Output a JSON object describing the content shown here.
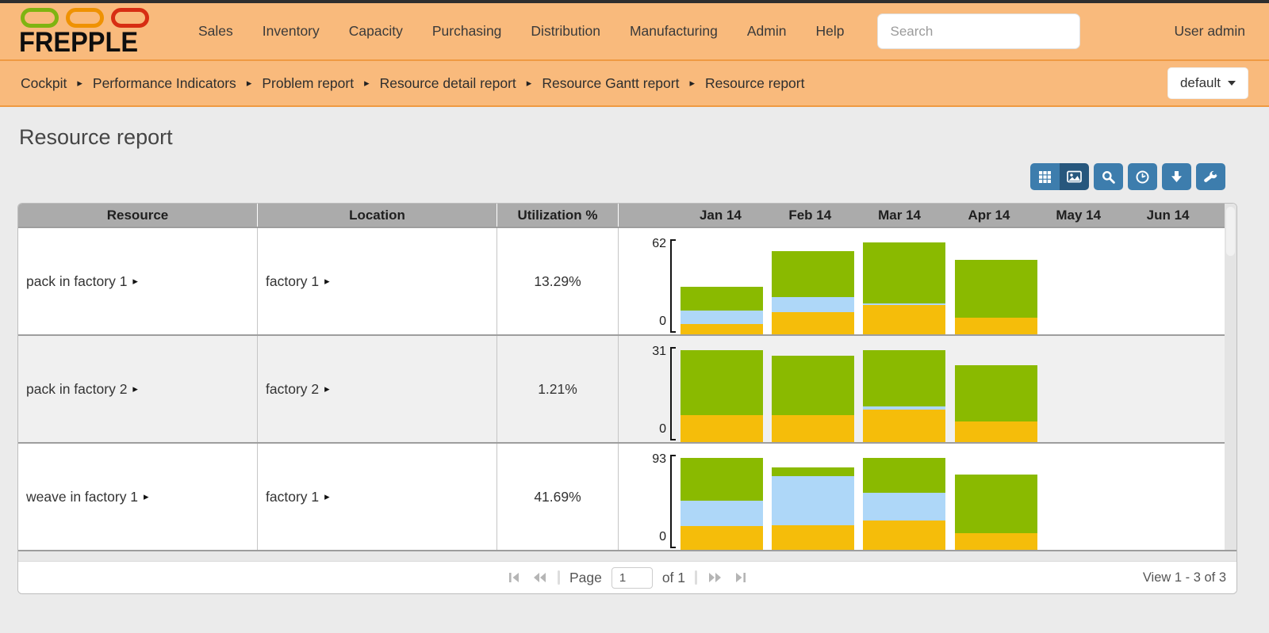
{
  "navbar": {
    "brand": "FREPPLE",
    "menu": [
      "Sales",
      "Inventory",
      "Capacity",
      "Purchasing",
      "Distribution",
      "Manufacturing",
      "Admin",
      "Help"
    ],
    "search_placeholder": "Search",
    "user": "User admin"
  },
  "breadcrumb": {
    "items": [
      "Cockpit",
      "Performance Indicators",
      "Problem report",
      "Resource detail report",
      "Resource Gantt report",
      "Resource report"
    ],
    "view_selector": "default"
  },
  "page": {
    "title": "Resource report"
  },
  "toolbar": {
    "buttons": [
      {
        "name": "table-view-button",
        "icon": "table-icon",
        "active": false,
        "group": 1
      },
      {
        "name": "graph-view-button",
        "icon": "image-icon",
        "active": true,
        "group": 1
      },
      {
        "name": "search-button",
        "icon": "magnifier-icon",
        "active": false,
        "group": 0
      },
      {
        "name": "time-buckets-button",
        "icon": "clock-icon",
        "active": false,
        "group": 0
      },
      {
        "name": "export-button",
        "icon": "download-arrow-icon",
        "active": false,
        "group": 0
      },
      {
        "name": "customize-button",
        "icon": "wrench-icon",
        "active": false,
        "group": 0
      }
    ]
  },
  "table": {
    "columns": [
      "Resource",
      "Location",
      "Utilization %"
    ],
    "months": [
      "Jan 14",
      "Feb 14",
      "Mar 14",
      "Apr 14",
      "May 14",
      "Jun 14"
    ],
    "rows": [
      {
        "resource": "pack in factory 1",
        "location": "factory 1",
        "utilization": "13.29%"
      },
      {
        "resource": "pack in factory 2",
        "location": "factory 2",
        "utilization": "1.21%"
      },
      {
        "resource": "weave in factory 1",
        "location": "factory 1",
        "utilization": "41.69%"
      }
    ]
  },
  "chart_data": [
    {
      "type": "bar",
      "stacked": true,
      "row": "pack in factory 1",
      "categories": [
        "Jan 14",
        "Feb 14",
        "Mar 14",
        "Apr 14",
        "May 14",
        "Jun 14"
      ],
      "ylim": [
        0,
        62
      ],
      "series": [
        {
          "name": "yellow",
          "color": "#f5bd0a",
          "values": [
            7,
            15,
            20,
            11,
            0,
            0
          ]
        },
        {
          "name": "blue",
          "color": "#aed7f8",
          "values": [
            9,
            10,
            1,
            0,
            0,
            0
          ]
        },
        {
          "name": "green",
          "color": "#8aba00",
          "values": [
            16,
            31,
            41,
            39,
            0,
            0
          ]
        }
      ]
    },
    {
      "type": "bar",
      "stacked": true,
      "row": "pack in factory 2",
      "categories": [
        "Jan 14",
        "Feb 14",
        "Mar 14",
        "Apr 14",
        "May 14",
        "Jun 14"
      ],
      "ylim": [
        0,
        31
      ],
      "series": [
        {
          "name": "yellow",
          "color": "#f5bd0a",
          "values": [
            9,
            9,
            11,
            7,
            0,
            0
          ]
        },
        {
          "name": "blue",
          "color": "#aed7f8",
          "values": [
            0,
            0,
            1,
            0,
            0,
            0
          ]
        },
        {
          "name": "green",
          "color": "#8aba00",
          "values": [
            22,
            20,
            19,
            19,
            0,
            0
          ]
        }
      ]
    },
    {
      "type": "bar",
      "stacked": true,
      "row": "weave in factory 1",
      "categories": [
        "Jan 14",
        "Feb 14",
        "Mar 14",
        "Apr 14",
        "May 14",
        "Jun 14"
      ],
      "ylim": [
        0,
        93
      ],
      "series": [
        {
          "name": "yellow",
          "color": "#f5bd0a",
          "values": [
            24,
            25,
            30,
            17,
            0,
            0
          ]
        },
        {
          "name": "blue",
          "color": "#aed7f8",
          "values": [
            26,
            50,
            28,
            0,
            0,
            0
          ]
        },
        {
          "name": "green",
          "color": "#8aba00",
          "values": [
            43,
            9,
            35,
            59,
            0,
            0
          ]
        }
      ]
    }
  ],
  "pager": {
    "page_label": "Page",
    "page_value": "1",
    "of_label": "of 1",
    "view_label": "View 1 - 3 of 3"
  },
  "colors": {
    "navbar_bg": "#f9ba7c",
    "navbar_border": "#ef9a42",
    "toolbar_blue": "#3d7dad",
    "toolbar_blue_active": "#27577d",
    "header_gray": "#ababab",
    "stripe_gray": "#f0f0f0",
    "bar_green": "#8aba00",
    "bar_blue": "#aed7f8",
    "bar_yellow": "#f5bd0a"
  }
}
